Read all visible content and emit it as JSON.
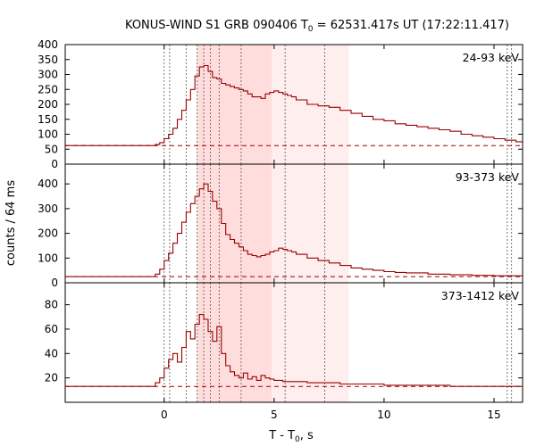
{
  "chart_data": {
    "type": "line",
    "title": {
      "prefix": "KONUS-WIND S1 GRB 090406 T",
      "subscript": "0",
      "suffix": " = 62531.417s UT (17:22:11.417)"
    },
    "xlabel": {
      "prefix": "T - T",
      "subscript": "0",
      "suffix": ", s"
    },
    "ylabel": "counts / 64 ms",
    "xlim": [
      -4.5,
      16.3
    ],
    "x_ticks": [
      0,
      5,
      10,
      15
    ],
    "x_tick_labels": [
      "0",
      "5",
      "10",
      "15"
    ],
    "line_color": "#990000",
    "shaded_regions": [
      {
        "from": 1.5,
        "to": 4.9,
        "color": "#ffdddd"
      },
      {
        "from": 4.9,
        "to": 8.4,
        "color": "#ffeeee"
      }
    ],
    "dotted_markers": [
      0.0,
      0.25,
      1.0,
      1.5,
      1.8,
      2.1,
      2.5,
      3.5,
      5.5,
      7.3,
      15.6,
      15.8
    ],
    "panels": [
      {
        "label": "24-93 keV",
        "ylim": [
          0,
          400
        ],
        "y_ticks": [
          0,
          50,
          100,
          150,
          200,
          250,
          300,
          350,
          400
        ],
        "background": 62,
        "points": [
          [
            -4.5,
            62
          ],
          [
            -0.6,
            62
          ],
          [
            -0.4,
            66
          ],
          [
            -0.2,
            72
          ],
          [
            0,
            85
          ],
          [
            0.2,
            100
          ],
          [
            0.4,
            120
          ],
          [
            0.6,
            150
          ],
          [
            0.8,
            180
          ],
          [
            1.0,
            215
          ],
          [
            1.2,
            250
          ],
          [
            1.4,
            295
          ],
          [
            1.6,
            325
          ],
          [
            1.8,
            330
          ],
          [
            2.0,
            310
          ],
          [
            2.2,
            290
          ],
          [
            2.4,
            285
          ],
          [
            2.6,
            270
          ],
          [
            2.8,
            265
          ],
          [
            3.0,
            260
          ],
          [
            3.2,
            255
          ],
          [
            3.4,
            250
          ],
          [
            3.6,
            245
          ],
          [
            3.8,
            235
          ],
          [
            4.0,
            225
          ],
          [
            4.2,
            225
          ],
          [
            4.4,
            220
          ],
          [
            4.6,
            235
          ],
          [
            4.8,
            240
          ],
          [
            5.0,
            245
          ],
          [
            5.2,
            240
          ],
          [
            5.4,
            235
          ],
          [
            5.6,
            230
          ],
          [
            5.8,
            225
          ],
          [
            6.0,
            215
          ],
          [
            6.5,
            200
          ],
          [
            7.0,
            195
          ],
          [
            7.5,
            190
          ],
          [
            8.0,
            180
          ],
          [
            8.5,
            170
          ],
          [
            9.0,
            160
          ],
          [
            9.5,
            150
          ],
          [
            10,
            145
          ],
          [
            10.5,
            135
          ],
          [
            11,
            130
          ],
          [
            11.5,
            125
          ],
          [
            12,
            120
          ],
          [
            12.5,
            115
          ],
          [
            13,
            110
          ],
          [
            13.5,
            100
          ],
          [
            14,
            95
          ],
          [
            14.5,
            90
          ],
          [
            15,
            85
          ],
          [
            15.5,
            80
          ],
          [
            16,
            75
          ],
          [
            16.3,
            70
          ]
        ]
      },
      {
        "label": "93-373 keV",
        "ylim": [
          0,
          480
        ],
        "y_ticks": [
          0,
          100,
          200,
          300,
          400
        ],
        "background": 25,
        "points": [
          [
            -4.5,
            25
          ],
          [
            -1.2,
            25
          ],
          [
            -0.6,
            25
          ],
          [
            -0.4,
            35
          ],
          [
            -0.2,
            55
          ],
          [
            0,
            90
          ],
          [
            0.2,
            120
          ],
          [
            0.4,
            160
          ],
          [
            0.6,
            200
          ],
          [
            0.8,
            245
          ],
          [
            1.0,
            285
          ],
          [
            1.2,
            320
          ],
          [
            1.4,
            350
          ],
          [
            1.6,
            380
          ],
          [
            1.8,
            400
          ],
          [
            2.0,
            370
          ],
          [
            2.2,
            330
          ],
          [
            2.4,
            300
          ],
          [
            2.6,
            240
          ],
          [
            2.8,
            195
          ],
          [
            3.0,
            175
          ],
          [
            3.2,
            160
          ],
          [
            3.4,
            145
          ],
          [
            3.6,
            130
          ],
          [
            3.8,
            115
          ],
          [
            4.0,
            110
          ],
          [
            4.2,
            105
          ],
          [
            4.4,
            110
          ],
          [
            4.6,
            115
          ],
          [
            4.8,
            125
          ],
          [
            5.0,
            130
          ],
          [
            5.2,
            140
          ],
          [
            5.4,
            135
          ],
          [
            5.6,
            130
          ],
          [
            5.8,
            125
          ],
          [
            6.0,
            115
          ],
          [
            6.5,
            100
          ],
          [
            7.0,
            90
          ],
          [
            7.5,
            80
          ],
          [
            8.0,
            70
          ],
          [
            8.5,
            60
          ],
          [
            9.0,
            55
          ],
          [
            9.5,
            50
          ],
          [
            10,
            45
          ],
          [
            10.5,
            42
          ],
          [
            11,
            40
          ],
          [
            12,
            35
          ],
          [
            13,
            32
          ],
          [
            14,
            30
          ],
          [
            15,
            28
          ],
          [
            16.3,
            27
          ]
        ]
      },
      {
        "label": "373-1412 keV",
        "ylim": [
          0,
          98
        ],
        "y_ticks": [
          20,
          40,
          60,
          80
        ],
        "background": 13,
        "points": [
          [
            -4.5,
            13
          ],
          [
            -1.2,
            13
          ],
          [
            -0.6,
            13
          ],
          [
            -0.4,
            16
          ],
          [
            -0.2,
            20
          ],
          [
            0,
            28
          ],
          [
            0.2,
            35
          ],
          [
            0.4,
            40
          ],
          [
            0.6,
            33
          ],
          [
            0.8,
            45
          ],
          [
            1.0,
            58
          ],
          [
            1.2,
            52
          ],
          [
            1.4,
            64
          ],
          [
            1.6,
            72
          ],
          [
            1.8,
            68
          ],
          [
            2.0,
            58
          ],
          [
            2.2,
            50
          ],
          [
            2.4,
            62
          ],
          [
            2.6,
            40
          ],
          [
            2.8,
            30
          ],
          [
            3.0,
            25
          ],
          [
            3.2,
            22
          ],
          [
            3.4,
            20
          ],
          [
            3.6,
            24
          ],
          [
            3.8,
            19
          ],
          [
            4.0,
            21
          ],
          [
            4.2,
            18
          ],
          [
            4.4,
            22
          ],
          [
            4.6,
            20
          ],
          [
            4.8,
            19
          ],
          [
            5.0,
            18
          ],
          [
            5.4,
            17
          ],
          [
            6.0,
            17
          ],
          [
            6.5,
            16
          ],
          [
            7.0,
            16
          ],
          [
            8.0,
            15
          ],
          [
            9.0,
            15
          ],
          [
            10,
            14
          ],
          [
            11,
            14
          ],
          [
            12,
            14
          ],
          [
            13,
            13
          ],
          [
            14,
            13
          ],
          [
            15,
            13
          ],
          [
            16.3,
            13
          ]
        ]
      }
    ]
  }
}
